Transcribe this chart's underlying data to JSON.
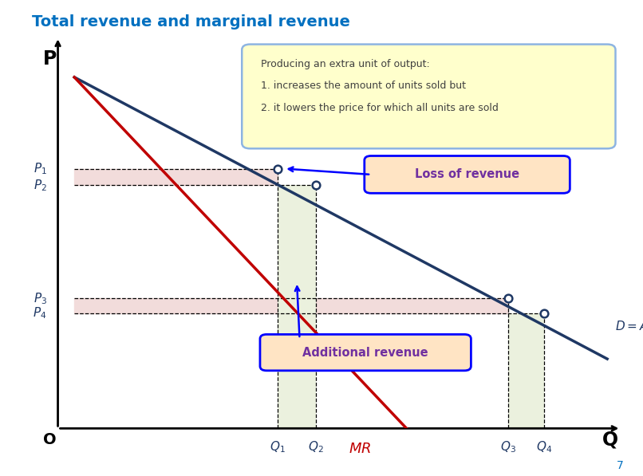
{
  "title": "Total revenue and marginal revenue",
  "title_color": "#0070C0",
  "title_fontsize": 14,
  "bg_color": "#ffffff",
  "xlim": [
    0,
    10
  ],
  "ylim": [
    0,
    10
  ],
  "Q1": 3.7,
  "Q2": 4.4,
  "Q3": 7.9,
  "Q4": 8.55,
  "P1": 6.3,
  "P2": 5.85,
  "P3": 2.75,
  "P4": 2.35,
  "demand_color": "#1F3864",
  "mr_color": "#C00000",
  "note_box_text_line0": "Producing an extra unit of output:",
  "note_box_text_line1": "1. increases the amount of units sold but",
  "note_box_text_line2": "2. it lowers the price for which all units are sold",
  "note_box_facecolor": "#FFFFCC",
  "note_box_edgecolor": "#8DB4E2",
  "loss_box_text": "Loss of revenue",
  "loss_box_facecolor": "#FFE4C4",
  "loss_box_edgecolor": "#0000FF",
  "additional_box_text": "Additional revenue",
  "additional_box_facecolor": "#FFE4C4",
  "additional_box_edgecolor": "#0000FF",
  "pink_fill": "#F2DCDB",
  "green_fill": "#EBF1DE",
  "label_color": "#1F3864",
  "page_num": "7"
}
